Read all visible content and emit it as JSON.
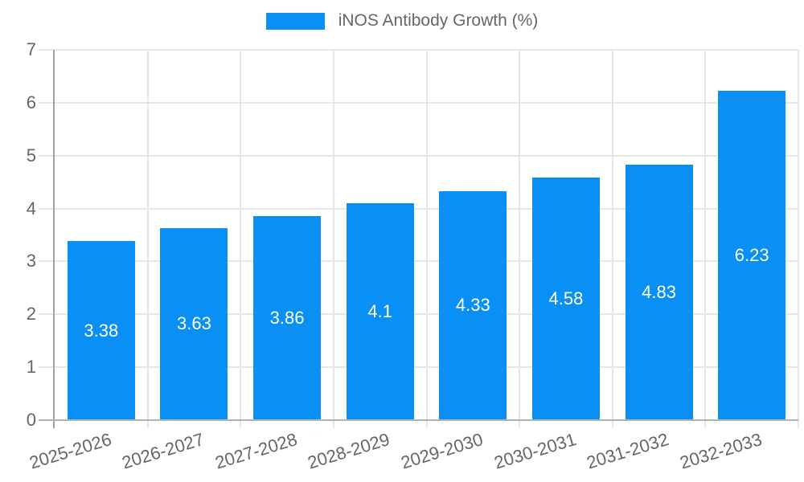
{
  "chart_data": {
    "type": "bar",
    "title": "iNOS Antibody Growth (%)",
    "categories": [
      "2025-2026",
      "2026-2027",
      "2027-2028",
      "2028-2029",
      "2029-2030",
      "2030-2031",
      "2031-2032",
      "2032-2033"
    ],
    "values": [
      3.38,
      3.63,
      3.86,
      4.1,
      4.33,
      4.58,
      4.83,
      6.23
    ],
    "xlabel": "",
    "ylabel": "",
    "ylim": [
      0,
      7
    ],
    "yticks": [
      0,
      1,
      2,
      3,
      4,
      5,
      6,
      7
    ],
    "grid": true,
    "legend_position": "top",
    "x_tick_rotation_deg": -17,
    "colors": {
      "bar": "#0a8ff5",
      "grid": "#e6e6e6",
      "y_axis": "#a0a0a0",
      "x_axis": "#b2b2b2",
      "tick_label": "#666666",
      "legend_label": "#666666",
      "value_label": "#ffffff"
    }
  }
}
